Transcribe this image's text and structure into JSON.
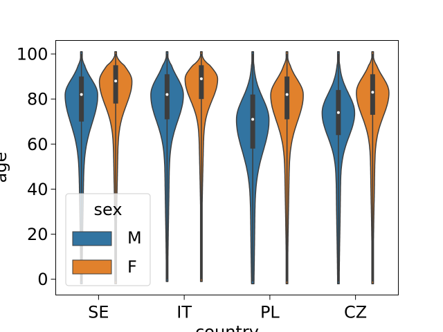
{
  "chart_data": {
    "type": "violin",
    "title": "",
    "xlabel": "country",
    "ylabel": "age",
    "categories": [
      "SE",
      "IT",
      "PL",
      "CZ"
    ],
    "ylim": [
      -7,
      106
    ],
    "yticks": [
      0,
      20,
      40,
      60,
      80,
      100
    ],
    "grid": false,
    "legend": {
      "title": "sex",
      "placement": "lower-left"
    },
    "series": [
      {
        "name": "M",
        "color": "#3274a1",
        "stats": [
          {
            "category": "SE",
            "q1": 70,
            "median": 82,
            "q3": 90,
            "min": -2,
            "max": 101
          },
          {
            "category": "IT",
            "q1": 71,
            "median": 82,
            "q3": 91,
            "min": -1,
            "max": 101
          },
          {
            "category": "PL",
            "q1": 58,
            "median": 71,
            "q3": 82,
            "min": -2,
            "max": 101
          },
          {
            "category": "CZ",
            "q1": 64,
            "median": 74,
            "q3": 84,
            "min": -2,
            "max": 101
          }
        ]
      },
      {
        "name": "F",
        "color": "#e1812c",
        "stats": [
          {
            "category": "SE",
            "q1": 78,
            "median": 88,
            "q3": 95,
            "min": -2,
            "max": 101
          },
          {
            "category": "IT",
            "q1": 80,
            "median": 89,
            "q3": 95,
            "min": -1,
            "max": 101
          },
          {
            "category": "PL",
            "q1": 71,
            "median": 82,
            "q3": 90,
            "min": -2,
            "max": 101
          },
          {
            "category": "CZ",
            "q1": 73,
            "median": 83,
            "q3": 91,
            "min": -2,
            "max": 101
          }
        ]
      }
    ]
  }
}
